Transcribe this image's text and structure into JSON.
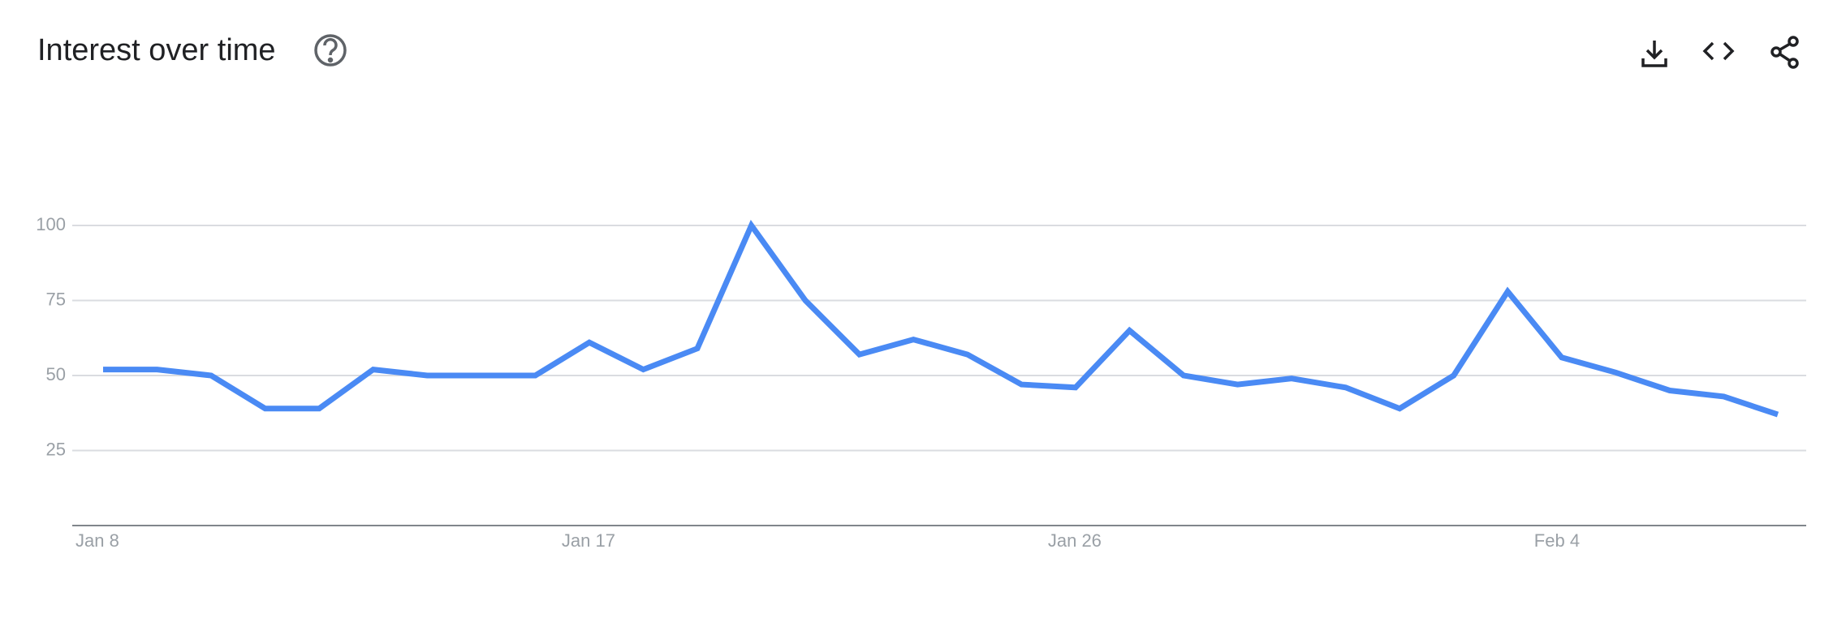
{
  "chart_data": {
    "type": "line",
    "title": "Interest over time",
    "categories": [
      "Jan 8",
      null,
      null,
      null,
      null,
      null,
      null,
      null,
      null,
      "Jan 17",
      null,
      null,
      null,
      null,
      null,
      null,
      null,
      null,
      "Jan 26",
      null,
      null,
      null,
      null,
      null,
      null,
      null,
      null,
      "Feb 4",
      null,
      null,
      null,
      null
    ],
    "series": [
      {
        "name": null,
        "color": "#4a8af4",
        "values": [
          52,
          52,
          50,
          39,
          39,
          52,
          50,
          50,
          50,
          61,
          52,
          59,
          100,
          75,
          57,
          62,
          57,
          47,
          46,
          65,
          50,
          47,
          49,
          46,
          39,
          50,
          78,
          56,
          51,
          45,
          43,
          37
        ]
      }
    ],
    "ylim": [
      0,
      100
    ],
    "yticks": [
      25,
      50,
      75,
      100
    ],
    "grid": true
  }
}
